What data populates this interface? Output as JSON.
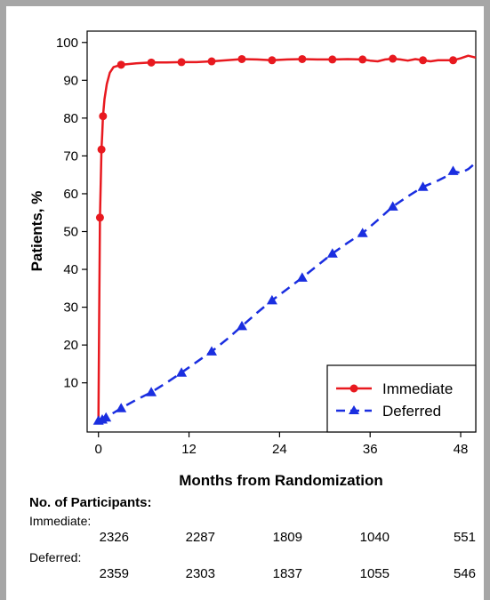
{
  "chart_data": {
    "type": "line",
    "xlabel": "Months from Randomization",
    "ylabel": "Patients, %",
    "xlim": [
      -1.5,
      50
    ],
    "ylim": [
      -3,
      103
    ],
    "x_ticks": [
      0,
      12,
      24,
      36,
      48
    ],
    "y_ticks": [
      10,
      20,
      30,
      40,
      50,
      60,
      70,
      80,
      90,
      100
    ],
    "legend_position": "bottom-right",
    "series": [
      {
        "name": "Immediate",
        "color": "#e8191f",
        "line_style": "solid",
        "marker": "circle",
        "line": [
          [
            0,
            0
          ],
          [
            0.1,
            30
          ],
          [
            0.2,
            53.7
          ],
          [
            0.3,
            63
          ],
          [
            0.4,
            71.7
          ],
          [
            0.5,
            76
          ],
          [
            0.6,
            80.5
          ],
          [
            0.8,
            85
          ],
          [
            1.1,
            89
          ],
          [
            1.5,
            92
          ],
          [
            2,
            93.5
          ],
          [
            3,
            94.1
          ],
          [
            5,
            94.5
          ],
          [
            7,
            94.7
          ],
          [
            9,
            94.7
          ],
          [
            11,
            94.8
          ],
          [
            13,
            94.8
          ],
          [
            15,
            95.0
          ],
          [
            17,
            95.3
          ],
          [
            19,
            95.6
          ],
          [
            21,
            95.5
          ],
          [
            23,
            95.3
          ],
          [
            25,
            95.5
          ],
          [
            27,
            95.6
          ],
          [
            29,
            95.5
          ],
          [
            31,
            95.5
          ],
          [
            33,
            95.6
          ],
          [
            35,
            95.5
          ],
          [
            36,
            95.2
          ],
          [
            37,
            95.0
          ],
          [
            38,
            95.5
          ],
          [
            39,
            95.7
          ],
          [
            40,
            95.5
          ],
          [
            41,
            95.2
          ],
          [
            42,
            95.6
          ],
          [
            43,
            95.3
          ],
          [
            44,
            95.0
          ],
          [
            45,
            95.3
          ],
          [
            46,
            95.3
          ],
          [
            47,
            95.3
          ],
          [
            48,
            95.8
          ],
          [
            49,
            96.5
          ],
          [
            50,
            96.0
          ]
        ],
        "markers": [
          [
            0.2,
            53.7
          ],
          [
            0.4,
            71.7
          ],
          [
            0.6,
            80.5
          ],
          [
            3,
            94.1
          ],
          [
            7,
            94.7
          ],
          [
            11,
            94.8
          ],
          [
            15,
            95.0
          ],
          [
            19,
            95.6
          ],
          [
            23,
            95.3
          ],
          [
            27,
            95.6
          ],
          [
            31,
            95.5
          ],
          [
            35,
            95.5
          ],
          [
            39,
            95.7
          ],
          [
            43,
            95.3
          ],
          [
            47,
            95.3
          ]
        ]
      },
      {
        "name": "Deferred",
        "color": "#1a2ee0",
        "line_style": "dashed",
        "marker": "triangle",
        "line": [
          [
            0,
            0
          ],
          [
            1,
            0.8
          ],
          [
            3,
            3.3
          ],
          [
            5,
            5.5
          ],
          [
            7,
            7.5
          ],
          [
            9,
            10
          ],
          [
            11,
            12.7
          ],
          [
            13,
            15.5
          ],
          [
            15,
            18.3
          ],
          [
            17,
            21.5
          ],
          [
            19,
            25
          ],
          [
            21,
            28.5
          ],
          [
            23,
            31.8
          ],
          [
            25,
            34.8
          ],
          [
            27,
            37.8
          ],
          [
            29,
            41
          ],
          [
            31,
            44.2
          ],
          [
            33,
            47
          ],
          [
            35,
            49.6
          ],
          [
            37,
            53
          ],
          [
            39,
            56.6
          ],
          [
            41,
            59.3
          ],
          [
            43,
            61.8
          ],
          [
            45,
            63.5
          ],
          [
            46,
            64.5
          ],
          [
            47,
            66
          ],
          [
            48,
            65.5
          ],
          [
            49,
            66.5
          ],
          [
            50,
            68.2
          ]
        ],
        "markers": [
          [
            0,
            0
          ],
          [
            0.5,
            0.3
          ],
          [
            1,
            0.8
          ],
          [
            3,
            3.3
          ],
          [
            7,
            7.5
          ],
          [
            11,
            12.7
          ],
          [
            15,
            18.3
          ],
          [
            19,
            25
          ],
          [
            23,
            31.8
          ],
          [
            27,
            37.8
          ],
          [
            31,
            44.2
          ],
          [
            35,
            49.6
          ],
          [
            39,
            56.6
          ],
          [
            43,
            61.8
          ],
          [
            47,
            66
          ]
        ]
      }
    ]
  },
  "participants": {
    "title": "No. of Participants:",
    "groups": [
      {
        "label": "Immediate:",
        "values": [
          "2326",
          "2287",
          "1809",
          "1040",
          "551"
        ]
      },
      {
        "label": "Deferred:",
        "values": [
          "2359",
          "2303",
          "1837",
          "1055",
          "546"
        ]
      }
    ]
  }
}
